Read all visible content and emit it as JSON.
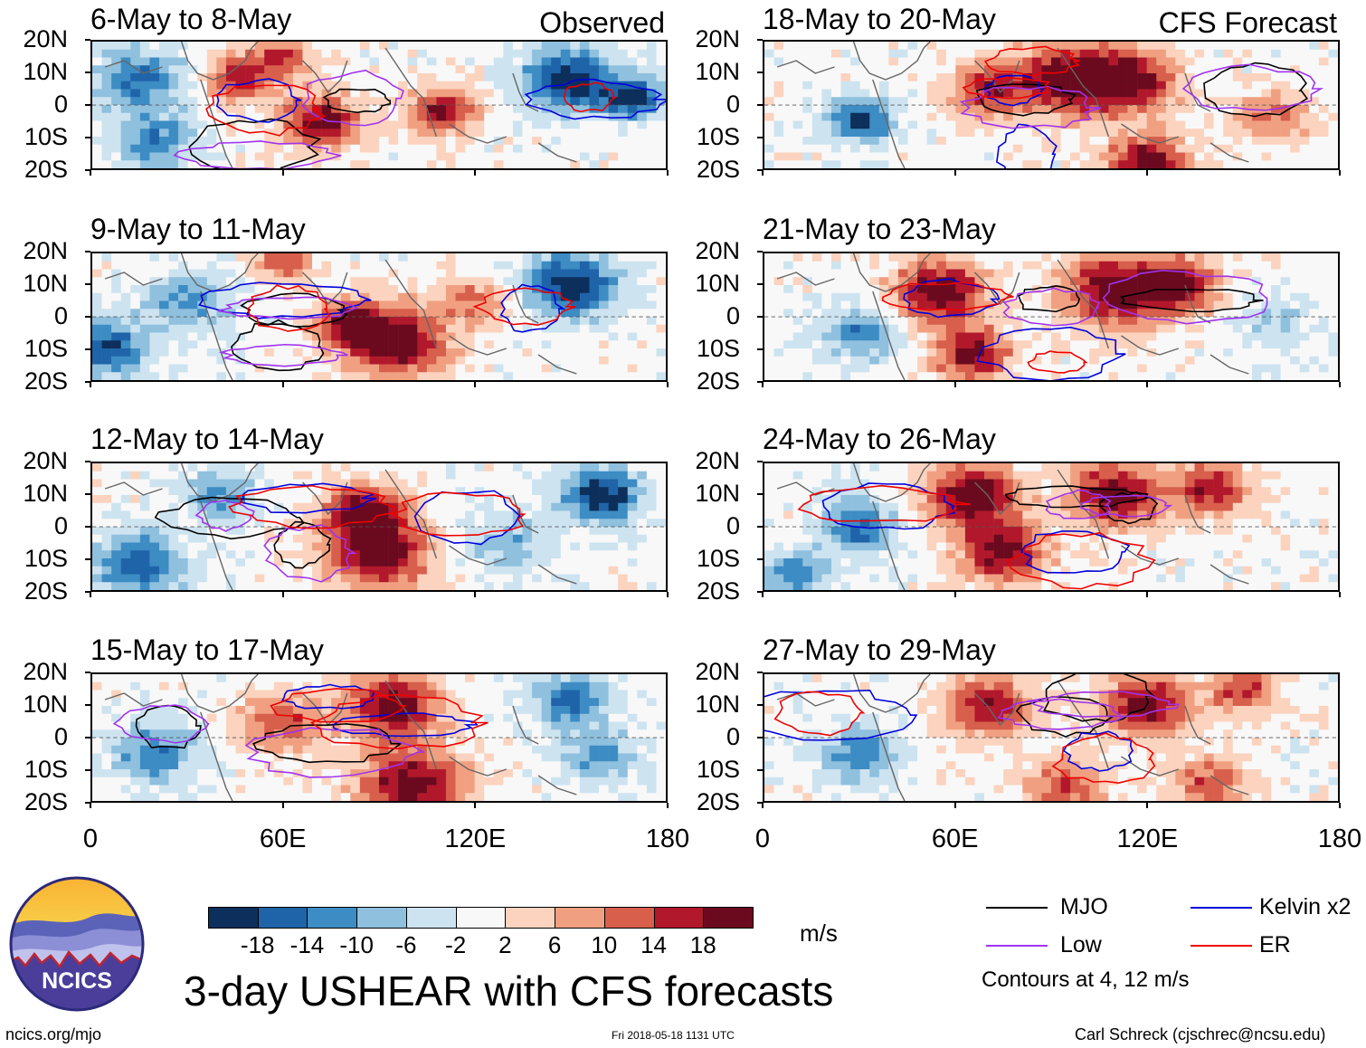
{
  "chart_data": {
    "type": "heatmap",
    "title": "3-day USHEAR with CFS forecasts",
    "variable": "USHEAR",
    "units": "m/s",
    "x_ticks": [
      "0",
      "60E",
      "120E",
      "180"
    ],
    "y_ticks": [
      "20N",
      "10N",
      "0",
      "10S",
      "20S"
    ],
    "xlim": [
      0,
      180
    ],
    "ylim": [
      -20,
      20
    ],
    "columns": [
      {
        "label": "Observed",
        "panels": [
          "6-May to 8-May",
          "9-May to 11-May",
          "12-May to 14-May",
          "15-May to 17-May"
        ]
      },
      {
        "label": "CFS Forecast",
        "panels": [
          "18-May to 20-May",
          "21-May to 23-May",
          "24-May to 26-May",
          "27-May to 29-May"
        ]
      }
    ],
    "colorbar": {
      "labels": [
        "-18",
        "-14",
        "-10",
        "-6",
        "-2",
        "2",
        "6",
        "10",
        "14",
        "18"
      ],
      "colors": [
        "#0d2f5c",
        "#1f64a8",
        "#3d8cc4",
        "#8fc0de",
        "#cde3f0",
        "#f8f8f8",
        "#fbd3be",
        "#f0a081",
        "#d75f4c",
        "#b2182b",
        "#6b0a1e"
      ]
    },
    "legend": [
      {
        "label": "MJO",
        "color": "#000000"
      },
      {
        "label": "Kelvin x2",
        "color": "#0000dd"
      },
      {
        "label": "Low",
        "color": "#a033ee"
      },
      {
        "label": "ER",
        "color": "#ee0000"
      }
    ],
    "contour_note": "Contours at 4, 12 m/s"
  },
  "footer": {
    "logo_text": "NCICS",
    "site": "ncics.org/mjo",
    "timestamp": "Fri 2018-05-18 1131 UTC",
    "author": "Carl Schreck (cjschrec@ncsu.edu)"
  }
}
